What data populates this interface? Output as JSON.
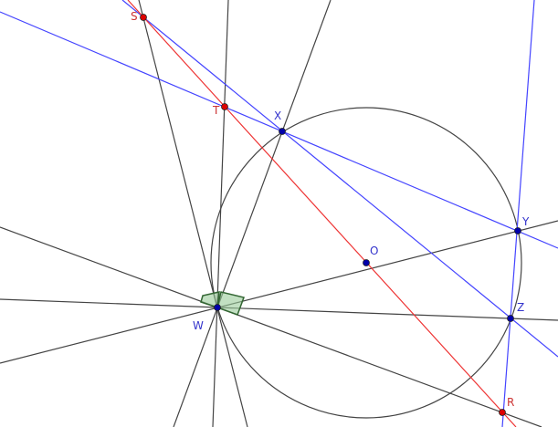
{
  "points": [
    {
      "label": "S"
    },
    {
      "label": "T"
    },
    {
      "label": "X"
    },
    {
      "label": "Y"
    },
    {
      "label": "O"
    },
    {
      "label": "W"
    },
    {
      "label": "Z"
    },
    {
      "label": "R"
    }
  ]
}
